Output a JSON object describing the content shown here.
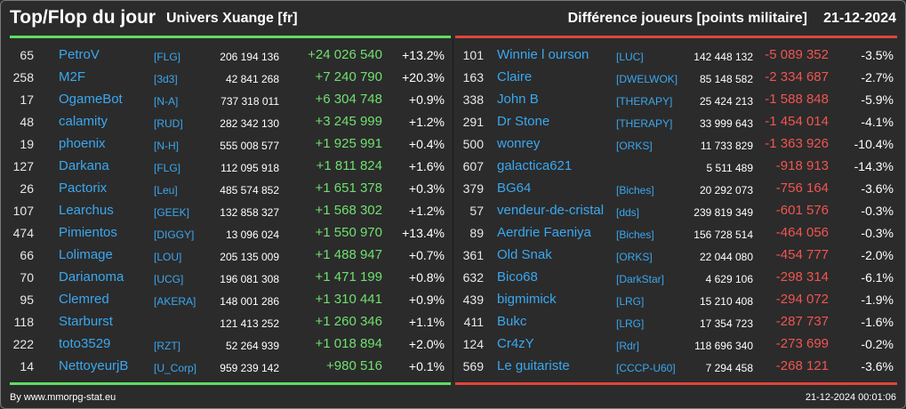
{
  "header": {
    "title": "Top/Flop du jour",
    "universe": "Univers Xuange [fr]",
    "subtitle": "Différence joueurs [points militaire]",
    "date": "21-12-2024"
  },
  "colors": {
    "top_accent": "#5fdd5f",
    "flop_accent": "#e0453c",
    "name_link": "#3aa8f0",
    "background": "#2b2b2b"
  },
  "top": [
    {
      "rank": "65",
      "name": "PetroV",
      "alliance": "[FLG]",
      "points": "206 194 136",
      "diff": "+24 026 540",
      "pct": "+13.2%"
    },
    {
      "rank": "258",
      "name": "M2F",
      "alliance": "[3d3]",
      "points": "42 841 268",
      "diff": "+7 240 790",
      "pct": "+20.3%"
    },
    {
      "rank": "17",
      "name": "OgameBot",
      "alliance": "[N-A]",
      "points": "737 318 011",
      "diff": "+6 304 748",
      "pct": "+0.9%"
    },
    {
      "rank": "48",
      "name": "calamity",
      "alliance": "[RUD]",
      "points": "282 342 130",
      "diff": "+3 245 999",
      "pct": "+1.2%"
    },
    {
      "rank": "19",
      "name": "phoenix",
      "alliance": "[N-H]",
      "points": "555 008 577",
      "diff": "+1 925 991",
      "pct": "+0.4%"
    },
    {
      "rank": "127",
      "name": "Darkana",
      "alliance": "[FLG]",
      "points": "112 095 918",
      "diff": "+1 811 824",
      "pct": "+1.6%"
    },
    {
      "rank": "26",
      "name": "Pactorix",
      "alliance": "[Leu]",
      "points": "485 574 852",
      "diff": "+1 651 378",
      "pct": "+0.3%"
    },
    {
      "rank": "107",
      "name": "Learchus",
      "alliance": "[GEEK]",
      "points": "132 858 327",
      "diff": "+1 568 302",
      "pct": "+1.2%"
    },
    {
      "rank": "474",
      "name": "Pimientos",
      "alliance": "[DIGGY]",
      "points": "13 096 024",
      "diff": "+1 550 970",
      "pct": "+13.4%"
    },
    {
      "rank": "66",
      "name": "Lolimage",
      "alliance": "[LOU]",
      "points": "205 135 009",
      "diff": "+1 488 947",
      "pct": "+0.7%"
    },
    {
      "rank": "70",
      "name": "Darianoma",
      "alliance": "[UCG]",
      "points": "196 081 308",
      "diff": "+1 471 199",
      "pct": "+0.8%"
    },
    {
      "rank": "95",
      "name": "Clemred",
      "alliance": "[AKERA]",
      "points": "148 001 286",
      "diff": "+1 310 441",
      "pct": "+0.9%"
    },
    {
      "rank": "118",
      "name": "Starburst",
      "alliance": "",
      "points": "121 413 252",
      "diff": "+1 260 346",
      "pct": "+1.1%"
    },
    {
      "rank": "222",
      "name": "toto3529",
      "alliance": "[RZT]",
      "points": "52 264 939",
      "diff": "+1 018 894",
      "pct": "+2.0%"
    },
    {
      "rank": "14",
      "name": "NettoyeurjB",
      "alliance": "[U_Corp]",
      "points": "959 239 142",
      "diff": "+980 516",
      "pct": "+0.1%"
    }
  ],
  "flop": [
    {
      "rank": "101",
      "name": "Winnie l ourson",
      "alliance": "[LUC]",
      "points": "142 448 132",
      "diff": "-5 089 352",
      "pct": "-3.5%"
    },
    {
      "rank": "163",
      "name": "Claire",
      "alliance": "[DWELWOK]",
      "points": "85 148 582",
      "diff": "-2 334 687",
      "pct": "-2.7%"
    },
    {
      "rank": "338",
      "name": "John B",
      "alliance": "[THERAPY]",
      "points": "25 424 213",
      "diff": "-1 588 848",
      "pct": "-5.9%"
    },
    {
      "rank": "291",
      "name": "Dr Stone",
      "alliance": "[THERAPY]",
      "points": "33 999 643",
      "diff": "-1 454 014",
      "pct": "-4.1%"
    },
    {
      "rank": "500",
      "name": "wonrey",
      "alliance": "[ORKS]",
      "points": "11 733 829",
      "diff": "-1 363 926",
      "pct": "-10.4%"
    },
    {
      "rank": "607",
      "name": "galactica621",
      "alliance": "",
      "points": "5 511 489",
      "diff": "-918 913",
      "pct": "-14.3%"
    },
    {
      "rank": "379",
      "name": "BG64",
      "alliance": "[Biches]",
      "points": "20 292 073",
      "diff": "-756 164",
      "pct": "-3.6%"
    },
    {
      "rank": "57",
      "name": "vendeur-de-cristal",
      "alliance": "[dds]",
      "points": "239 819 349",
      "diff": "-601 576",
      "pct": "-0.3%"
    },
    {
      "rank": "89",
      "name": "Aerdrie Faeniya",
      "alliance": "[Biches]",
      "points": "156 728 514",
      "diff": "-464 056",
      "pct": "-0.3%"
    },
    {
      "rank": "361",
      "name": "Old Snak",
      "alliance": "[ORKS]",
      "points": "22 044 080",
      "diff": "-454 777",
      "pct": "-2.0%"
    },
    {
      "rank": "632",
      "name": "Bico68",
      "alliance": "[DarkStar]",
      "points": "4 629 106",
      "diff": "-298 314",
      "pct": "-6.1%"
    },
    {
      "rank": "439",
      "name": "bigmimick",
      "alliance": "[LRG]",
      "points": "15 210 408",
      "diff": "-294 072",
      "pct": "-1.9%"
    },
    {
      "rank": "411",
      "name": "Bukc",
      "alliance": "[LRG]",
      "points": "17 354 723",
      "diff": "-287 737",
      "pct": "-1.6%"
    },
    {
      "rank": "124",
      "name": "Cr4zY",
      "alliance": "[Rdr]",
      "points": "118 696 340",
      "diff": "-273 699",
      "pct": "-0.2%"
    },
    {
      "rank": "569",
      "name": "Le guitariste",
      "alliance": "[CCCP-U60]",
      "points": "7 294 458",
      "diff": "-268 121",
      "pct": "-3.6%"
    }
  ],
  "footer": {
    "credit": "By www.mmorpg-stat.eu",
    "timestamp": "21-12-2024 00:01:06"
  }
}
